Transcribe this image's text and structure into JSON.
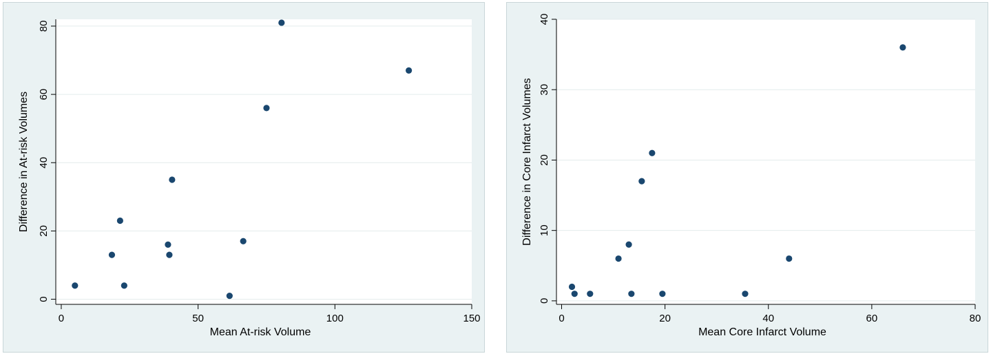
{
  "chart_data": [
    {
      "type": "scatter",
      "xlabel": "Mean At-risk Volume",
      "ylabel": "Difference in At-risk Volumes",
      "xlim": [
        -2,
        150
      ],
      "ylim": [
        -1.5,
        82
      ],
      "xticks": [
        0,
        50,
        100,
        150
      ],
      "yticks": [
        0,
        20,
        40,
        60,
        80
      ],
      "grid": true,
      "marker_color": "#1a476f",
      "points": [
        {
          "x": 5,
          "y": 4
        },
        {
          "x": 18.5,
          "y": 13
        },
        {
          "x": 21.5,
          "y": 23
        },
        {
          "x": 23,
          "y": 4
        },
        {
          "x": 39,
          "y": 16
        },
        {
          "x": 39.5,
          "y": 13
        },
        {
          "x": 40.5,
          "y": 35
        },
        {
          "x": 61.5,
          "y": 1
        },
        {
          "x": 66.5,
          "y": 17
        },
        {
          "x": 75,
          "y": 56
        },
        {
          "x": 80.5,
          "y": 81
        },
        {
          "x": 127,
          "y": 67
        }
      ]
    },
    {
      "type": "scatter",
      "xlabel": "Mean Core Infarct Volume",
      "ylabel": "Difference in Core Infarct Volumes",
      "xlim": [
        -1,
        80
      ],
      "ylim": [
        -0.5,
        40
      ],
      "xticks": [
        0,
        20,
        40,
        60,
        80
      ],
      "yticks": [
        0,
        10,
        20,
        30,
        40
      ],
      "grid": true,
      "marker_color": "#1a476f",
      "points": [
        {
          "x": 2,
          "y": 2
        },
        {
          "x": 2.5,
          "y": 1
        },
        {
          "x": 5.5,
          "y": 1
        },
        {
          "x": 11,
          "y": 6
        },
        {
          "x": 13,
          "y": 8
        },
        {
          "x": 13.5,
          "y": 1
        },
        {
          "x": 15.5,
          "y": 17
        },
        {
          "x": 17.5,
          "y": 21
        },
        {
          "x": 19.5,
          "y": 1
        },
        {
          "x": 35.5,
          "y": 1
        },
        {
          "x": 44,
          "y": 6
        },
        {
          "x": 66,
          "y": 36
        }
      ]
    }
  ]
}
